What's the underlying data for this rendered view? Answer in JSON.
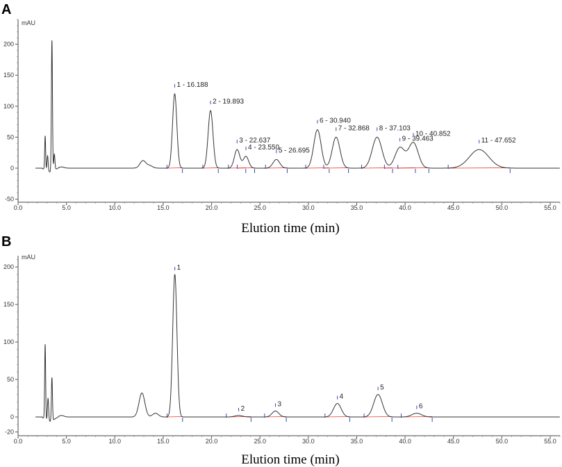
{
  "chart_data": [
    {
      "panel": "A",
      "type": "line",
      "unit": "mAU",
      "xlabel": "Elution time (min)",
      "xlim": [
        0,
        56
      ],
      "ylim": [
        -55,
        240
      ],
      "x_ticks": [
        0.0,
        5.0,
        10.0,
        15.0,
        20.0,
        25.0,
        30.0,
        35.0,
        40.0,
        45.0,
        50.0,
        55.0
      ],
      "x_tick_labels": [
        "0.0",
        "5.0",
        "10.0",
        "15.0",
        "20.0",
        "25.0",
        "30.0",
        "35.0",
        "40.0",
        "45.0",
        "50.0",
        "55.0"
      ],
      "y_ticks": [
        -50,
        0,
        50,
        100,
        150,
        200
      ],
      "y_tick_labels": [
        "-50",
        "0",
        "50",
        "100",
        "150",
        "200"
      ],
      "labeled_peaks": [
        {
          "label": "1 - 16.188",
          "x": 16.188,
          "y": 120,
          "w": 0.22
        },
        {
          "label": "2 - 19.893",
          "x": 19.893,
          "y": 93,
          "w": 0.25
        },
        {
          "label": "3 - 22.637",
          "x": 22.637,
          "y": 30,
          "w": 0.28
        },
        {
          "label": "4 - 23.550",
          "x": 23.55,
          "y": 19,
          "w": 0.28
        },
        {
          "label": "5 - 26.695",
          "x": 26.695,
          "y": 14,
          "w": 0.35
        },
        {
          "label": "6 - 30.940",
          "x": 30.94,
          "y": 62,
          "w": 0.38
        },
        {
          "label": "7 - 32.868",
          "x": 32.868,
          "y": 50,
          "w": 0.4
        },
        {
          "label": "8 - 37.103",
          "x": 37.103,
          "y": 50,
          "w": 0.5
        },
        {
          "label": "9 - 39.463",
          "x": 39.463,
          "y": 33,
          "w": 0.5
        },
        {
          "label": "10 - 40.852",
          "x": 40.852,
          "y": 41,
          "w": 0.5
        },
        {
          "label": "11 - 47.652",
          "x": 47.652,
          "y": 30,
          "w": 1.0
        }
      ],
      "other_peaks": [
        {
          "x": 2.8,
          "y": 55,
          "w": 0.05
        },
        {
          "x": 3.05,
          "y": 25,
          "w": 0.06
        },
        {
          "x": 3.5,
          "y": 212,
          "w": 0.055
        },
        {
          "x": 3.75,
          "y": 26,
          "w": 0.06
        },
        {
          "x": 4.5,
          "y": 2,
          "w": 0.25
        },
        {
          "x": 12.9,
          "y": 12,
          "w": 0.3
        },
        {
          "x": 13.6,
          "y": 4,
          "w": 0.3
        }
      ]
    },
    {
      "panel": "B",
      "type": "line",
      "unit": "mAU",
      "xlabel": "Elution time (min)",
      "xlim": [
        0,
        56
      ],
      "ylim": [
        -25,
        215
      ],
      "x_ticks": [
        0.0,
        5.0,
        10.0,
        15.0,
        20.0,
        25.0,
        30.0,
        35.0,
        40.0,
        45.0,
        50.0,
        55.0
      ],
      "x_tick_labels": [
        "0.0",
        "5.0",
        "10.0",
        "15.0",
        "20.0",
        "25.0",
        "30.0",
        "35.0",
        "40.0",
        "45.0",
        "50.0",
        "55.0"
      ],
      "y_ticks": [
        -20,
        0,
        50,
        100,
        150,
        200
      ],
      "y_tick_labels": [
        "-20",
        "0",
        "50",
        "100",
        "150",
        "200"
      ],
      "labeled_peaks": [
        {
          "label": "1",
          "x": 16.2,
          "y": 190,
          "w": 0.22
        },
        {
          "label": "2",
          "x": 22.8,
          "y": 2,
          "w": 0.4
        },
        {
          "label": "3",
          "x": 26.6,
          "y": 8,
          "w": 0.35
        },
        {
          "label": "4",
          "x": 33.0,
          "y": 18,
          "w": 0.4
        },
        {
          "label": "5",
          "x": 37.2,
          "y": 30,
          "w": 0.45
        },
        {
          "label": "6",
          "x": 41.2,
          "y": 5,
          "w": 0.5
        }
      ],
      "other_peaks": [
        {
          "x": 2.8,
          "y": 100,
          "w": 0.05
        },
        {
          "x": 3.1,
          "y": 30,
          "w": 0.06
        },
        {
          "x": 3.5,
          "y": 58,
          "w": 0.055
        },
        {
          "x": 4.5,
          "y": 2,
          "w": 0.25
        },
        {
          "x": 12.8,
          "y": 32,
          "w": 0.3
        },
        {
          "x": 14.2,
          "y": 5,
          "w": 0.3
        }
      ]
    }
  ]
}
